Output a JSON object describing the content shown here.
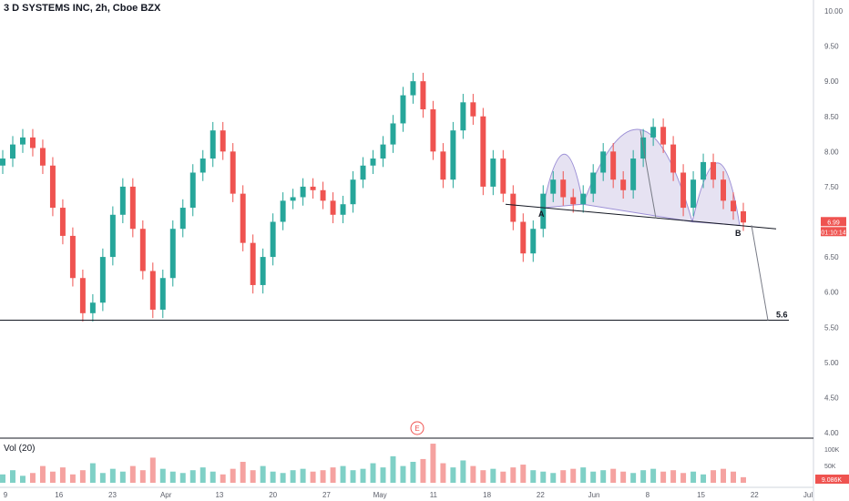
{
  "header": {
    "symbol_title": "3 D SYSTEMS INC, 2h, Cboe BZX"
  },
  "volume": {
    "label": "Vol (20)",
    "last_value": "9.086K",
    "axis_ticks": [
      "100K",
      "50K"
    ]
  },
  "price": {
    "last_price": "6.99",
    "countdown": "01:10:14"
  },
  "colors": {
    "up": "#26a69a",
    "down": "#ef5350",
    "pattern_fill": "#c7bfe3",
    "pattern_stroke": "#9c8fd6",
    "line": "#131722"
  },
  "chart_data": {
    "type": "candlestick",
    "y_ticks": [
      "10.00",
      "9.50",
      "9.00",
      "8.50",
      "8.00",
      "7.50",
      "7.00",
      "6.50",
      "6.00",
      "5.50",
      "5.00",
      "4.50",
      "4.00"
    ],
    "y_range": [
      4.0,
      10.0
    ],
    "x_tick_labels": [
      "9",
      "16",
      "23",
      "Apr",
      "13",
      "20",
      "27",
      "May",
      "11",
      "18",
      "22",
      "Jun",
      "8",
      "15",
      "22",
      "Jul"
    ],
    "annotations": {
      "point_a": "A",
      "point_b": "B",
      "target_label": "5.6",
      "earnings_marker": "E"
    },
    "target_level": 5.6,
    "close_series": [
      7.9,
      8.1,
      8.2,
      8.05,
      7.8,
      7.2,
      6.8,
      6.2,
      5.7,
      5.85,
      6.5,
      7.1,
      7.5,
      6.9,
      6.3,
      5.75,
      6.2,
      6.9,
      7.2,
      7.7,
      7.9,
      8.3,
      8.0,
      7.4,
      6.7,
      6.1,
      6.5,
      7.0,
      7.3,
      7.35,
      7.5,
      7.45,
      7.3,
      7.1,
      7.25,
      7.6,
      7.8,
      7.9,
      8.1,
      8.4,
      8.8,
      9.0,
      8.6,
      8.0,
      7.6,
      8.3,
      8.7,
      8.5,
      7.5,
      7.9,
      7.4,
      7.0,
      6.55,
      6.9,
      7.4,
      7.6,
      7.35,
      7.25,
      7.4,
      7.7,
      8.0,
      7.6,
      7.45,
      7.9,
      8.2,
      8.35,
      8.1,
      7.7,
      7.2,
      7.6,
      7.85,
      7.6,
      7.3,
      7.15,
      6.99
    ],
    "volume_series": [
      30,
      45,
      25,
      35,
      60,
      40,
      55,
      30,
      45,
      70,
      35,
      50,
      40,
      60,
      45,
      90,
      50,
      40,
      35,
      45,
      55,
      40,
      30,
      50,
      75,
      45,
      60,
      40,
      35,
      45,
      50,
      40,
      45,
      55,
      60,
      45,
      50,
      70,
      55,
      95,
      60,
      75,
      85,
      140,
      70,
      55,
      80,
      60,
      45,
      50,
      40,
      55,
      65,
      45,
      40,
      35,
      45,
      50,
      55,
      40,
      45,
      50,
      40,
      35,
      45,
      50,
      40,
      45,
      35,
      40,
      30,
      45,
      50,
      40,
      20
    ]
  }
}
